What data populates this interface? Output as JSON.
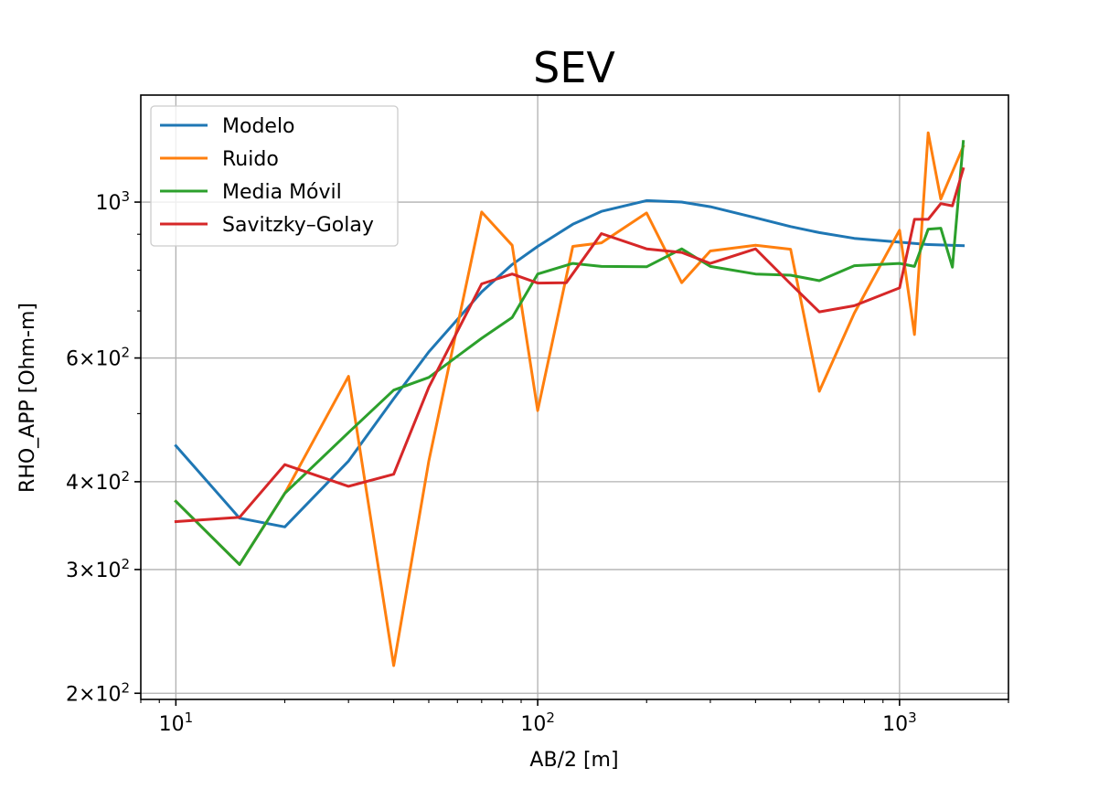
{
  "chart_data": {
    "type": "line",
    "title": "SEV",
    "xlabel": "AB/2 [m]",
    "ylabel": "RHO_APP [Ohm-m]",
    "x_scale": "log",
    "y_scale": "log",
    "xlim": [
      8,
      2000
    ],
    "ylim": [
      196,
      1420
    ],
    "grid": "major",
    "legend_position": "upper left",
    "x_ticks": [
      {
        "value": 10,
        "base": "10",
        "exp": "1"
      },
      {
        "value": 100,
        "base": "10",
        "exp": "2"
      },
      {
        "value": 1000,
        "base": "10",
        "exp": "3"
      }
    ],
    "y_ticks": [
      {
        "value": 200,
        "mant": "2",
        "base": "10",
        "exp": "2"
      },
      {
        "value": 300,
        "mant": "3",
        "base": "10",
        "exp": "2"
      },
      {
        "value": 400,
        "mant": "4",
        "base": "10",
        "exp": "2"
      },
      {
        "value": 600,
        "mant": "6",
        "base": "10",
        "exp": "2"
      },
      {
        "value": 1000,
        "mant": "",
        "base": "10",
        "exp": "3"
      }
    ],
    "series": [
      {
        "name": "Modelo",
        "color": "#1f77b4",
        "x": [
          10,
          15,
          20,
          30,
          40,
          50,
          70,
          85,
          100,
          125,
          150,
          200,
          250,
          300,
          400,
          500,
          600,
          750,
          1000,
          1200,
          1500
        ],
        "y": [
          450,
          355,
          345,
          428,
          525,
          612,
          745,
          815,
          865,
          930,
          970,
          1005,
          1000,
          985,
          950,
          923,
          905,
          888,
          877,
          870,
          867
        ]
      },
      {
        "name": "Ruido",
        "color": "#ff7f0e",
        "x": [
          10,
          15,
          20,
          30,
          40,
          50,
          70,
          85,
          100,
          125,
          150,
          200,
          250,
          300,
          400,
          500,
          600,
          750,
          1000,
          1100,
          1200,
          1300,
          1500
        ],
        "y": [
          375,
          305,
          385,
          565,
          219,
          428,
          968,
          868,
          505,
          865,
          875,
          965,
          768,
          852,
          868,
          857,
          538,
          695,
          912,
          648,
          1255,
          1010,
          1200
        ]
      },
      {
        "name": "Media Móvil",
        "color": "#2ca02c",
        "x": [
          10,
          15,
          20,
          30,
          40,
          50,
          70,
          85,
          100,
          125,
          150,
          200,
          250,
          300,
          400,
          500,
          600,
          750,
          1000,
          1100,
          1200,
          1300,
          1400,
          1500
        ],
        "y": [
          375,
          305,
          385,
          470,
          540,
          563,
          640,
          685,
          790,
          818,
          810,
          809,
          858,
          810,
          790,
          787,
          773,
          812,
          818,
          810,
          915,
          918,
          808,
          1220
        ]
      },
      {
        "name": "Savitzky–Golay",
        "color": "#d62728",
        "x": [
          10,
          15,
          20,
          30,
          40,
          50,
          70,
          85,
          100,
          120,
          150,
          200,
          250,
          300,
          400,
          500,
          600,
          750,
          1000,
          1100,
          1200,
          1300,
          1400,
          1500
        ],
        "y": [
          351,
          356,
          423,
          394,
          410,
          545,
          765,
          790,
          767,
          768,
          902,
          858,
          848,
          818,
          858,
          765,
          698,
          712,
          755,
          945,
          945,
          995,
          988,
          1115
        ]
      }
    ]
  }
}
